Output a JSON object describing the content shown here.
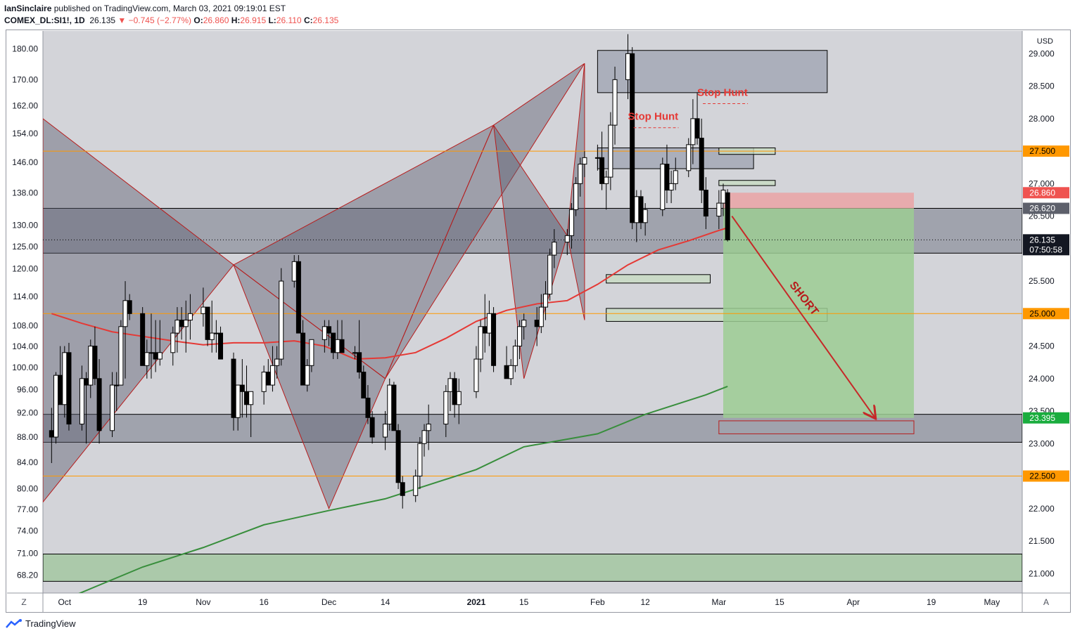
{
  "header": {
    "author": "IanSinclaire",
    "published_text": "published on TradingView.com, March 03, 2021 09:19:01 EST",
    "symbol": "COMEX_DL:SI1!, 1D",
    "last": "26.135",
    "change": "▼ −0.745 (−2.77%)",
    "o_label": "O:",
    "o": "26.860",
    "h_label": "H:",
    "h": "26.915",
    "l_label": "L:",
    "l": "26.110",
    "c_label": "C:",
    "c": "26.135"
  },
  "footer": {
    "brand": "TradingView"
  },
  "colors": {
    "up": "#ffffff",
    "down": "#000000",
    "ma_short": "#e53935",
    "ma_long": "#388e3c",
    "accent": "#ff9800",
    "tp_green": "#1aad3e"
  },
  "chart_data": {
    "type": "candlestick",
    "currency_label": "USD",
    "right_axis": {
      "ylim": [
        20.7,
        29.35
      ],
      "ticks": [
        "29.000",
        "28.500",
        "28.000",
        "27.500",
        "27.000",
        "26.500",
        "26.000",
        "25.500",
        "25.000",
        "24.500",
        "24.000",
        "23.500",
        "23.000",
        "22.500",
        "22.000",
        "21.500",
        "21.000"
      ]
    },
    "left_axis": {
      "scale": "log",
      "ylim": [
        66.0,
        186.0
      ],
      "ticks": [
        "180.00",
        "170.00",
        "162.00",
        "154.00",
        "146.00",
        "138.00",
        "130.00",
        "125.00",
        "120.00",
        "114.00",
        "108.00",
        "104.00",
        "100.00",
        "96.00",
        "92.00",
        "88.00",
        "84.00",
        "80.00",
        "77.00",
        "74.00",
        "71.00",
        "68.20"
      ]
    },
    "x_axis": {
      "labels": [
        "Oct",
        "19",
        "Nov",
        "16",
        "Dec",
        "14",
        "2021",
        "15",
        "Feb",
        "12",
        "Mar",
        "15",
        "Apr",
        "19",
        "May"
      ],
      "label_dates": [
        "2020-10-01",
        "2020-10-19",
        "2020-11-02",
        "2020-11-16",
        "2020-12-01",
        "2020-12-14",
        "2021-01-04",
        "2021-01-15",
        "2021-02-01",
        "2021-02-12",
        "2021-03-01",
        "2021-03-15",
        "2021-04-01",
        "2021-04-19",
        "2021-05-03"
      ],
      "xlim": [
        "2020-09-26",
        "2021-05-10"
      ]
    },
    "price_labels": [
      {
        "value": 27.5,
        "text": "27.500",
        "style": "orange"
      },
      {
        "value": 26.86,
        "text": "26.860",
        "style": "red"
      },
      {
        "value": 26.62,
        "text": "26.620",
        "style": "gray"
      },
      {
        "value": 26.135,
        "text": "26.135",
        "style": "black",
        "sub": "07:50:58"
      },
      {
        "value": 25.0,
        "text": "25.000",
        "style": "orange"
      },
      {
        "value": 23.395,
        "text": "23.395",
        "style": "green"
      },
      {
        "value": 22.5,
        "text": "22.500",
        "style": "orange"
      }
    ],
    "horizontal_lines": [
      {
        "value": 27.5,
        "color": "#ff9800"
      },
      {
        "value": 25.0,
        "color": "#ff9800"
      },
      {
        "value": 22.5,
        "color": "#ff9800"
      }
    ],
    "annotations": [
      {
        "text": "Stop Hunt",
        "date": "2021-02-08",
        "price": 27.98
      },
      {
        "text": "Stop Hunt",
        "date": "2021-02-24",
        "price": 28.35
      },
      {
        "text": "SHORT",
        "date": "2021-03-20",
        "price": 25.2
      }
    ],
    "position": {
      "type": "short",
      "entry": 26.62,
      "stop": 26.86,
      "target": 23.395,
      "start": "2021-03-02",
      "end": "2021-04-15"
    },
    "ohlc": [
      [
        "2020-09-28",
        23.2,
        23.55,
        22.7,
        23.1
      ],
      [
        "2020-09-29",
        23.1,
        24.1,
        23.0,
        24.05
      ],
      [
        "2020-09-30",
        24.05,
        24.5,
        23.6,
        23.6
      ],
      [
        "2020-10-01",
        23.6,
        24.5,
        23.4,
        24.4
      ],
      [
        "2020-10-02",
        24.4,
        24.55,
        23.2,
        23.3
      ],
      [
        "2020-10-05",
        23.3,
        24.2,
        23.2,
        24.0
      ],
      [
        "2020-10-06",
        24.0,
        24.1,
        23.0,
        23.9
      ],
      [
        "2020-10-07",
        23.9,
        24.6,
        23.7,
        24.5
      ],
      [
        "2020-10-08",
        24.5,
        24.8,
        23.9,
        24.0
      ],
      [
        "2020-10-09",
        24.0,
        24.3,
        23.0,
        23.2
      ],
      [
        "2020-10-12",
        23.2,
        24.1,
        23.1,
        23.9
      ],
      [
        "2020-10-13",
        23.9,
        24.1,
        23.5,
        23.9
      ],
      [
        "2020-10-14",
        23.9,
        24.9,
        23.9,
        24.8
      ],
      [
        "2020-10-15",
        24.8,
        25.5,
        24.0,
        25.2
      ],
      [
        "2020-10-16",
        25.2,
        25.3,
        24.9,
        25.0
      ],
      [
        "2020-10-19",
        25.0,
        25.1,
        24.2,
        24.2
      ],
      [
        "2020-10-20",
        24.2,
        24.6,
        24.0,
        24.4
      ],
      [
        "2020-10-21",
        24.4,
        25.0,
        24.0,
        24.4
      ],
      [
        "2020-10-22",
        24.4,
        24.9,
        24.1,
        24.3
      ],
      [
        "2020-10-23",
        24.3,
        24.9,
        24.2,
        24.4
      ],
      [
        "2020-10-26",
        24.4,
        24.8,
        24.2,
        24.7
      ],
      [
        "2020-10-27",
        24.7,
        25.1,
        24.4,
        24.9
      ],
      [
        "2020-10-28",
        24.9,
        25.1,
        24.6,
        24.8
      ],
      [
        "2020-10-29",
        24.8,
        25.2,
        24.4,
        24.9
      ],
      [
        "2020-10-30",
        24.9,
        25.3,
        24.6,
        25.0
      ],
      [
        "2020-11-02",
        25.0,
        25.4,
        24.8,
        25.1
      ],
      [
        "2020-11-03",
        25.1,
        25.1,
        24.5,
        24.6
      ],
      [
        "2020-11-04",
        24.6,
        25.2,
        24.4,
        24.7
      ],
      [
        "2020-11-05",
        24.7,
        24.9,
        24.4,
        24.7
      ],
      [
        "2020-11-06",
        24.7,
        24.8,
        24.3,
        24.3
      ],
      [
        "2020-11-09",
        24.3,
        24.4,
        23.2,
        23.4
      ],
      [
        "2020-11-10",
        23.4,
        23.9,
        23.2,
        23.9
      ],
      [
        "2020-11-11",
        23.9,
        24.3,
        23.4,
        23.8
      ],
      [
        "2020-11-12",
        23.8,
        24.2,
        23.4,
        23.6
      ],
      [
        "2020-11-13",
        23.6,
        23.8,
        23.1,
        23.8
      ],
      [
        "2020-11-16",
        23.8,
        24.2,
        23.6,
        24.1
      ],
      [
        "2020-11-17",
        24.1,
        24.3,
        23.9,
        23.9
      ],
      [
        "2020-11-18",
        23.9,
        24.5,
        23.8,
        24.2
      ],
      [
        "2020-11-19",
        24.2,
        24.5,
        24.0,
        24.3
      ],
      [
        "2020-11-20",
        24.3,
        25.7,
        24.2,
        25.5
      ],
      [
        "2020-11-23",
        25.5,
        25.9,
        25.4,
        25.8
      ],
      [
        "2020-11-24",
        25.8,
        25.9,
        24.7,
        24.7
      ],
      [
        "2020-11-25",
        24.7,
        24.9,
        23.9,
        23.9
      ],
      [
        "2020-11-26",
        23.9,
        24.3,
        23.8,
        24.2
      ],
      [
        "2020-11-27",
        24.2,
        24.6,
        24.1,
        24.6
      ],
      [
        "2020-11-30",
        24.6,
        24.9,
        24.4,
        24.8
      ],
      [
        "2020-12-01",
        24.8,
        24.9,
        24.5,
        24.7
      ],
      [
        "2020-12-02",
        24.7,
        24.7,
        24.3,
        24.4
      ],
      [
        "2020-12-03",
        24.4,
        24.9,
        24.3,
        24.6
      ],
      [
        "2020-12-04",
        24.6,
        24.9,
        24.4,
        24.4
      ],
      [
        "2020-12-07",
        24.4,
        24.5,
        24.3,
        24.4
      ],
      [
        "2020-12-08",
        24.4,
        24.9,
        24.0,
        24.1
      ],
      [
        "2020-12-09",
        24.1,
        24.2,
        23.7,
        23.7
      ],
      [
        "2020-12-10",
        23.7,
        23.9,
        23.3,
        23.4
      ],
      [
        "2020-12-11",
        23.4,
        23.5,
        23.0,
        23.1
      ],
      [
        "2020-12-14",
        23.1,
        23.5,
        22.9,
        23.3
      ],
      [
        "2020-12-15",
        23.3,
        24.0,
        23.2,
        23.9
      ],
      [
        "2020-12-16",
        23.9,
        23.95,
        23.2,
        23.2
      ],
      [
        "2020-12-17",
        23.2,
        23.3,
        22.3,
        22.4
      ],
      [
        "2020-12-18",
        22.4,
        22.5,
        22.0,
        22.2
      ],
      [
        "2020-12-21",
        22.2,
        22.6,
        22.1,
        22.5
      ],
      [
        "2020-12-22",
        22.5,
        23.1,
        22.3,
        23.0
      ],
      [
        "2020-12-23",
        23.0,
        23.3,
        22.8,
        23.2
      ],
      [
        "2020-12-24",
        23.2,
        23.6,
        22.9,
        23.3
      ],
      [
        "2020-12-28",
        23.3,
        23.9,
        23.1,
        23.8
      ],
      [
        "2020-12-29",
        23.8,
        24.1,
        23.5,
        24.0
      ],
      [
        "2020-12-30",
        24.0,
        24.1,
        23.4,
        23.6
      ],
      [
        "2020-12-31",
        23.6,
        24.0,
        23.3,
        23.8
      ],
      [
        "2021-01-04",
        23.8,
        24.5,
        23.7,
        24.3
      ],
      [
        "2021-01-05",
        24.3,
        24.9,
        24.1,
        24.8
      ],
      [
        "2021-01-06",
        24.8,
        25.3,
        24.4,
        24.7
      ],
      [
        "2021-01-07",
        24.7,
        25.2,
        24.5,
        25.0
      ],
      [
        "2021-01-08",
        25.0,
        25.1,
        24.1,
        24.2
      ],
      [
        "2021-01-11",
        24.2,
        24.5,
        24.0,
        24.0
      ],
      [
        "2021-01-12",
        24.0,
        24.3,
        23.9,
        24.2
      ],
      [
        "2021-01-13",
        24.2,
        24.6,
        24.1,
        24.5
      ],
      [
        "2021-01-14",
        24.5,
        24.9,
        24.3,
        24.8
      ],
      [
        "2021-01-15",
        24.8,
        25.0,
        24.6,
        24.9
      ],
      [
        "2021-01-18",
        24.9,
        25.1,
        24.5,
        24.8
      ],
      [
        "2021-01-19",
        24.8,
        25.3,
        24.7,
        25.1
      ],
      [
        "2021-01-20",
        25.1,
        25.5,
        24.9,
        25.3
      ],
      [
        "2021-01-21",
        25.3,
        26.0,
        25.2,
        25.9
      ],
      [
        "2021-01-22",
        25.9,
        26.3,
        25.7,
        26.1
      ],
      [
        "2021-01-25",
        26.1,
        26.3,
        25.9,
        26.2
      ],
      [
        "2021-01-26",
        26.2,
        26.7,
        26.0,
        26.6
      ],
      [
        "2021-01-27",
        26.6,
        27.1,
        26.5,
        27.0
      ],
      [
        "2021-01-28",
        27.0,
        27.4,
        26.8,
        27.3
      ],
      [
        "2021-01-29",
        27.3,
        27.5,
        27.1,
        27.4
      ],
      [
        "2021-02-01",
        27.4,
        27.6,
        27.2,
        27.4
      ],
      [
        "2021-02-02",
        27.4,
        27.8,
        26.9,
        27.0
      ],
      [
        "2021-02-03",
        27.0,
        27.2,
        26.6,
        27.1
      ],
      [
        "2021-02-04",
        27.1,
        28.1,
        26.9,
        27.9
      ],
      [
        "2021-02-05",
        27.9,
        28.8,
        27.6,
        28.6
      ],
      [
        "2021-02-08",
        28.6,
        29.3,
        28.3,
        29.0
      ],
      [
        "2021-02-09",
        29.0,
        29.1,
        26.3,
        26.4
      ],
      [
        "2021-02-10",
        26.4,
        26.9,
        26.1,
        26.8
      ],
      [
        "2021-02-11",
        26.8,
        26.9,
        26.3,
        26.4
      ],
      [
        "2021-02-12",
        26.4,
        26.7,
        26.2,
        26.6
      ],
      [
        "2021-02-16",
        26.6,
        27.4,
        26.5,
        27.3
      ],
      [
        "2021-02-17",
        27.3,
        27.6,
        26.7,
        26.9
      ],
      [
        "2021-02-18",
        26.9,
        27.2,
        26.7,
        27.0
      ],
      [
        "2021-02-19",
        27.0,
        27.4,
        26.9,
        27.2
      ],
      [
        "2021-02-22",
        27.2,
        27.7,
        27.1,
        27.6
      ],
      [
        "2021-02-23",
        27.6,
        28.3,
        27.3,
        28.0
      ],
      [
        "2021-02-24",
        28.0,
        28.4,
        27.6,
        27.7
      ],
      [
        "2021-02-25",
        27.7,
        28.0,
        26.7,
        26.9
      ],
      [
        "2021-02-26",
        26.9,
        27.1,
        26.3,
        26.5
      ],
      [
        "2021-03-01",
        26.5,
        26.9,
        26.3,
        26.7
      ],
      [
        "2021-03-02",
        26.7,
        27.0,
        26.5,
        26.9
      ],
      [
        "2021-03-03",
        26.86,
        26.915,
        26.11,
        26.135
      ]
    ],
    "series": [
      {
        "name": "",
        "type": "ma",
        "color": "#e53935",
        "x": [
          "2020-09-28",
          "2020-10-05",
          "2020-10-12",
          "2020-10-19",
          "2020-10-26",
          "2020-11-02",
          "2020-11-09",
          "2020-11-16",
          "2020-11-23",
          "2020-11-30",
          "2020-12-07",
          "2020-12-14",
          "2020-12-21",
          "2020-12-28",
          "2021-01-04",
          "2021-01-11",
          "2021-01-18",
          "2021-01-25",
          "2021-02-01",
          "2021-02-08",
          "2021-02-15",
          "2021-02-22",
          "2021-03-01",
          "2021-03-03"
        ],
        "values": [
          25.0,
          24.85,
          24.72,
          24.65,
          24.58,
          24.52,
          24.55,
          24.55,
          24.58,
          24.5,
          24.3,
          24.32,
          24.4,
          24.62,
          24.88,
          25.05,
          25.15,
          25.2,
          25.45,
          25.75,
          25.98,
          26.12,
          26.28,
          26.32
        ]
      },
      {
        "name": "",
        "type": "ma",
        "color": "#388e3c",
        "x": [
          "2020-10-01",
          "2020-10-19",
          "2020-11-02",
          "2020-11-16",
          "2020-12-01",
          "2020-12-14",
          "2021-01-04",
          "2021-01-15",
          "2021-02-01",
          "2021-02-12",
          "2021-02-26",
          "2021-03-03"
        ],
        "values": [
          20.6,
          21.1,
          21.4,
          21.75,
          21.97,
          22.15,
          22.6,
          22.95,
          23.15,
          23.45,
          23.75,
          23.88
        ]
      }
    ],
    "zones": [
      {
        "d0": "2021-02-01",
        "d1": "2021-03-26",
        "top": 29.05,
        "bot": 28.4,
        "fill": "#9ea3b0",
        "stroke": "#000000"
      },
      {
        "d0": "2021-02-01",
        "d1": "2021-03-09",
        "top": 27.55,
        "bot": 27.23,
        "fill": "#9ea3b0",
        "stroke": "#000000"
      },
      {
        "d0": "2020-09-26",
        "d1": "2021-05-10",
        "top": 26.62,
        "bot": 25.93,
        "fill": "#8f939d",
        "stroke": "#000000"
      },
      {
        "d0": "2020-09-26",
        "d1": "2021-05-10",
        "top": 23.45,
        "bot": 23.02,
        "fill": "#8f939d",
        "stroke": "#000000"
      },
      {
        "d0": "2020-09-26",
        "d1": "2021-05-10",
        "top": 21.3,
        "bot": 20.88,
        "fill": "#9ec59a",
        "stroke": "#000000"
      },
      {
        "d0": "2021-02-03",
        "d1": "2021-03-26",
        "top": 25.08,
        "bot": 24.88,
        "fill": "#c7dcc0",
        "stroke": "#000000"
      },
      {
        "d0": "2021-02-03",
        "d1": "2021-02-27",
        "top": 25.6,
        "bot": 25.47,
        "fill": "#c7dcc0",
        "stroke": "#000000"
      },
      {
        "d0": "2021-03-01",
        "d1": "2021-03-14",
        "top": 27.55,
        "bot": 27.45,
        "fill": "#c7dcc0",
        "stroke": "#000000"
      },
      {
        "d0": "2021-03-01",
        "d1": "2021-03-14",
        "top": 27.05,
        "bot": 26.97,
        "fill": "#c7dcc0",
        "stroke": "#000000"
      },
      {
        "d0": "2021-03-01",
        "d1": "2021-04-15",
        "top": 23.35,
        "bot": 23.15,
        "fill": "none",
        "stroke": "#b71c1c"
      }
    ],
    "patterns": [
      {
        "fill": "#5d6070",
        "stroke": "#b71c1c",
        "points": [
          [
            "2020-09-26",
            28.0
          ],
          [
            "2020-11-09",
            25.75
          ],
          [
            "2020-09-26",
            22.1
          ]
        ]
      },
      {
        "fill": "#5d6070",
        "stroke": "#b71c1c",
        "points": [
          [
            "2020-11-09",
            25.75
          ],
          [
            "2020-12-01",
            22.0
          ],
          [
            "2020-12-14",
            24.0
          ]
        ]
      },
      {
        "fill": "#5d6070",
        "stroke": "#b71c1c",
        "points": [
          [
            "2020-11-09",
            25.75
          ],
          [
            "2021-01-08",
            27.9
          ],
          [
            "2020-12-14",
            24.0
          ]
        ]
      },
      {
        "fill": "#5d6070",
        "stroke": "#b71c1c",
        "points": [
          [
            "2020-12-14",
            24.0
          ],
          [
            "2021-01-29",
            28.85
          ],
          [
            "2021-01-08",
            27.9
          ]
        ]
      },
      {
        "fill": "#5d6070",
        "stroke": "#b71c1c",
        "points": [
          [
            "2021-01-08",
            27.9
          ],
          [
            "2021-01-15",
            24.0
          ],
          [
            "2021-01-25",
            26.2
          ]
        ]
      },
      {
        "fill": "#5d6070",
        "stroke": "#b71c1c",
        "points": [
          [
            "2021-01-25",
            26.2
          ],
          [
            "2021-01-29",
            24.9
          ],
          [
            "2021-01-29",
            28.85
          ]
        ]
      }
    ]
  }
}
